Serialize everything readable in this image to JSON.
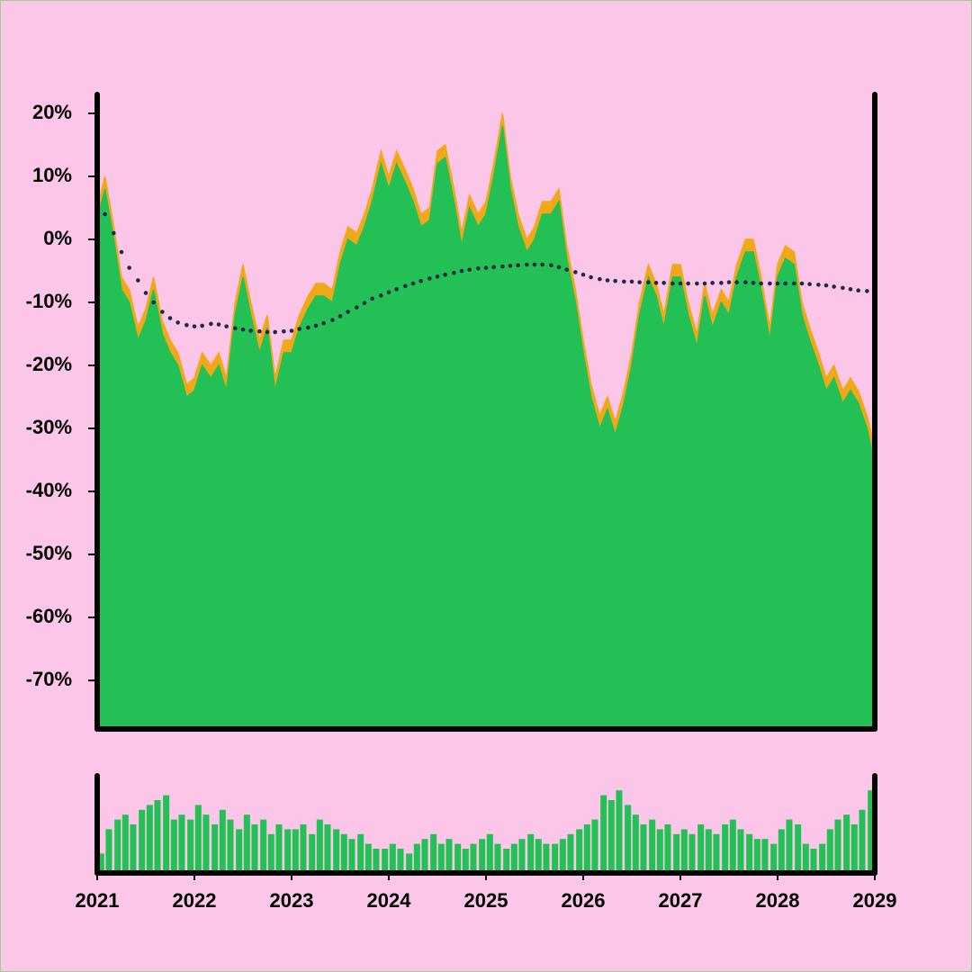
{
  "chart_data": [
    {
      "type": "area",
      "x": [
        2021,
        2021.08,
        2021.17,
        2021.25,
        2021.33,
        2021.42,
        2021.5,
        2021.58,
        2021.67,
        2021.75,
        2021.83,
        2021.92,
        2022,
        2022.08,
        2022.17,
        2022.25,
        2022.33,
        2022.42,
        2022.5,
        2022.58,
        2022.67,
        2022.75,
        2022.83,
        2022.92,
        2023,
        2023.08,
        2023.17,
        2023.25,
        2023.33,
        2023.42,
        2023.5,
        2023.58,
        2023.67,
        2023.75,
        2023.83,
        2023.92,
        2024,
        2024.08,
        2024.17,
        2024.25,
        2024.33,
        2024.42,
        2024.5,
        2024.58,
        2024.67,
        2024.75,
        2024.83,
        2024.92,
        2025,
        2025.08,
        2025.17,
        2025.25,
        2025.33,
        2025.42,
        2025.5,
        2025.58,
        2025.67,
        2025.75,
        2025.83,
        2025.92,
        2026,
        2026.08,
        2026.17,
        2026.25,
        2026.33,
        2026.42,
        2026.5,
        2026.58,
        2026.67,
        2026.75,
        2026.83,
        2026.92,
        2027,
        2027.08,
        2027.17,
        2027.25,
        2027.33,
        2027.42,
        2027.5,
        2027.58,
        2027.67,
        2027.75,
        2027.83,
        2027.92,
        2028,
        2028.08,
        2028.17,
        2028.25,
        2028.33,
        2028.42,
        2028.5,
        2028.58,
        2028.67,
        2028.75,
        2028.83,
        2028.92,
        2029
      ],
      "series": [
        {
          "color": "#f0a818",
          "values": [
            5,
            10,
            2,
            -6,
            -8,
            -14,
            -11,
            -6,
            -13,
            -16,
            -18,
            -23,
            -22,
            -18,
            -20,
            -18,
            -22,
            -10,
            -4,
            -10,
            -16,
            -12,
            -22,
            -16,
            -16,
            -12,
            -9,
            -7,
            -7,
            -8,
            -2,
            2,
            1,
            4,
            8,
            14,
            10,
            14,
            11,
            8,
            4,
            5,
            14,
            15,
            8,
            1,
            7,
            4,
            6,
            12,
            20,
            10,
            4,
            0,
            2,
            6,
            6,
            8,
            -1,
            -8,
            -16,
            -23,
            -28,
            -25,
            -29,
            -24,
            -18,
            -10,
            -4,
            -7,
            -12,
            -4,
            -4,
            -10,
            -15,
            -7,
            -12,
            -8,
            -10,
            -4,
            0,
            0,
            -6,
            -14,
            -4,
            -1,
            -2,
            -10,
            -14,
            -18,
            -22,
            -20,
            -24,
            -22,
            -24,
            -28,
            -33
          ]
        },
        {
          "color": "#22c055",
          "values": [
            3,
            8,
            0,
            -8,
            -10,
            -16,
            -13,
            -8,
            -15,
            -18,
            -20,
            -25,
            -24,
            -20,
            -22,
            -20,
            -24,
            -12,
            -6,
            -12,
            -18,
            -14,
            -24,
            -18,
            -18,
            -14,
            -11,
            -9,
            -9,
            -10,
            -4,
            0,
            -1,
            2,
            6,
            12,
            8,
            12,
            9,
            6,
            2,
            3,
            12,
            13,
            6,
            -1,
            5,
            2,
            4,
            10,
            18,
            8,
            2,
            -2,
            0,
            4,
            4,
            6,
            -3,
            -10,
            -18,
            -25,
            -30,
            -27,
            -31,
            -26,
            -20,
            -12,
            -6,
            -9,
            -14,
            -6,
            -6,
            -12,
            -17,
            -9,
            -14,
            -10,
            -12,
            -6,
            -2,
            -2,
            -8,
            -16,
            -6,
            -3,
            -4,
            -12,
            -16,
            -20,
            -24,
            -22,
            -26,
            -24,
            -26,
            -30,
            -36
          ]
        },
        {
          "type": "dots",
          "color": "#1f2a44",
          "values": [
            3,
            4,
            1,
            -2,
            -4.5,
            -6.5,
            -8.5,
            -10,
            -11.5,
            -12.5,
            -13.2,
            -13.6,
            -13.8,
            -13.7,
            -13.4,
            -13.5,
            -13.8,
            -14.1,
            -14.3,
            -14.5,
            -14.6,
            -14.7,
            -14.7,
            -14.6,
            -14.5,
            -14.2,
            -14,
            -13.7,
            -13.3,
            -12.8,
            -12.2,
            -11.5,
            -10.8,
            -10.1,
            -9.4,
            -8.9,
            -8.4,
            -7.9,
            -7.4,
            -7,
            -6.6,
            -6.2,
            -5.9,
            -5.6,
            -5.3,
            -5,
            -4.8,
            -4.6,
            -4.5,
            -4.4,
            -4.3,
            -4.2,
            -4.1,
            -4,
            -4,
            -4,
            -4.1,
            -4.4,
            -4.8,
            -5.2,
            -5.6,
            -6,
            -6.3,
            -6.5,
            -6.6,
            -6.7,
            -6.7,
            -6.8,
            -6.8,
            -6.9,
            -6.9,
            -7,
            -7,
            -7,
            -7,
            -7,
            -6.9,
            -6.9,
            -6.8,
            -6.8,
            -6.8,
            -6.9,
            -7,
            -7,
            -7,
            -7,
            -7,
            -7,
            -7.1,
            -7.2,
            -7.3,
            -7.5,
            -7.7,
            -7.9,
            -8.1,
            -8.2,
            -8.3
          ]
        }
      ],
      "xlim": [
        2021,
        2029
      ],
      "ylim": [
        -77.7,
        23
      ],
      "yticks": [
        {
          "value": 20,
          "label": "20%"
        },
        {
          "value": 10,
          "label": "10%"
        },
        {
          "value": 0,
          "label": "0%"
        },
        {
          "value": -10,
          "label": "-10%"
        },
        {
          "value": -20,
          "label": "-20%"
        },
        {
          "value": -30,
          "label": "-30%"
        },
        {
          "value": -40,
          "label": "-40%"
        },
        {
          "value": -50,
          "label": "-50%"
        },
        {
          "value": -60,
          "label": "-60%"
        },
        {
          "value": -70,
          "label": "-70%"
        }
      ]
    },
    {
      "type": "bar",
      "x": [
        2021.04,
        2021.12,
        2021.21,
        2021.29,
        2021.37,
        2021.46,
        2021.54,
        2021.62,
        2021.71,
        2021.79,
        2021.87,
        2021.96,
        2022.04,
        2022.12,
        2022.21,
        2022.29,
        2022.37,
        2022.46,
        2022.54,
        2022.62,
        2022.71,
        2022.79,
        2022.87,
        2022.96,
        2023.04,
        2023.12,
        2023.21,
        2023.29,
        2023.37,
        2023.46,
        2023.54,
        2023.62,
        2023.71,
        2023.79,
        2023.87,
        2023.96,
        2024.04,
        2024.12,
        2024.21,
        2024.29,
        2024.37,
        2024.46,
        2024.54,
        2024.62,
        2024.71,
        2024.79,
        2024.87,
        2024.96,
        2025.04,
        2025.12,
        2025.21,
        2025.29,
        2025.37,
        2025.46,
        2025.54,
        2025.62,
        2025.71,
        2025.79,
        2025.87,
        2025.96,
        2026.04,
        2026.12,
        2026.21,
        2026.29,
        2026.37,
        2026.46,
        2026.54,
        2026.62,
        2026.71,
        2026.79,
        2026.87,
        2026.96,
        2027.04,
        2027.12,
        2027.21,
        2027.29,
        2027.37,
        2027.46,
        2027.54,
        2027.62,
        2027.71,
        2027.79,
        2027.87,
        2027.96,
        2028.04,
        2028.12,
        2028.21,
        2028.29,
        2028.37,
        2028.46,
        2028.54,
        2028.62,
        2028.71,
        2028.79,
        2028.87,
        2028.96
      ],
      "color": "#22c055",
      "values": [
        20,
        45,
        55,
        60,
        50,
        65,
        70,
        75,
        80,
        55,
        60,
        55,
        70,
        60,
        50,
        65,
        55,
        45,
        60,
        50,
        55,
        40,
        50,
        45,
        45,
        50,
        40,
        55,
        50,
        45,
        40,
        35,
        40,
        30,
        25,
        25,
        30,
        25,
        20,
        30,
        35,
        40,
        30,
        35,
        30,
        25,
        30,
        35,
        40,
        30,
        25,
        30,
        35,
        40,
        35,
        30,
        30,
        35,
        40,
        45,
        50,
        55,
        80,
        75,
        85,
        70,
        60,
        50,
        55,
        45,
        50,
        40,
        45,
        40,
        50,
        45,
        40,
        50,
        55,
        45,
        40,
        35,
        35,
        30,
        45,
        55,
        50,
        30,
        25,
        30,
        45,
        55,
        60,
        50,
        65,
        85
      ],
      "xlim": [
        2021,
        2029
      ],
      "ylim": [
        0,
        100
      ],
      "xticks": [
        2021,
        2022,
        2023,
        2024,
        2025,
        2026,
        2027,
        2028,
        2029
      ]
    }
  ]
}
